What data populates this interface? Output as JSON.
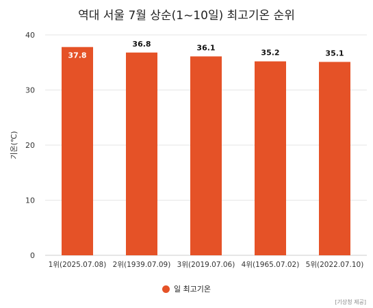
{
  "title": "역대 서울 7월 상순(1~10일) 최고기온 순위",
  "source": "[기상청 제공]",
  "colors": {
    "bar": "#E55227",
    "grid": "#e6e6e6",
    "axis": "#cccccc"
  },
  "chart_data": {
    "type": "bar",
    "categories": [
      "1위(2025.07.08)",
      "2위(1939.07.09)",
      "3위(2019.07.06)",
      "4위(1965.07.02)",
      "5위(2022.07.10)"
    ],
    "series": [
      {
        "name": "일 최고기온",
        "values": [
          37.8,
          36.8,
          36.1,
          35.2,
          35.1
        ]
      }
    ],
    "xlabel": "",
    "ylabel": "기온(℃)",
    "ylim": [
      0,
      40
    ],
    "yticks": [
      0,
      10,
      20,
      30,
      40
    ],
    "grid": true,
    "legend": "bottom-center",
    "data_labels": true
  }
}
